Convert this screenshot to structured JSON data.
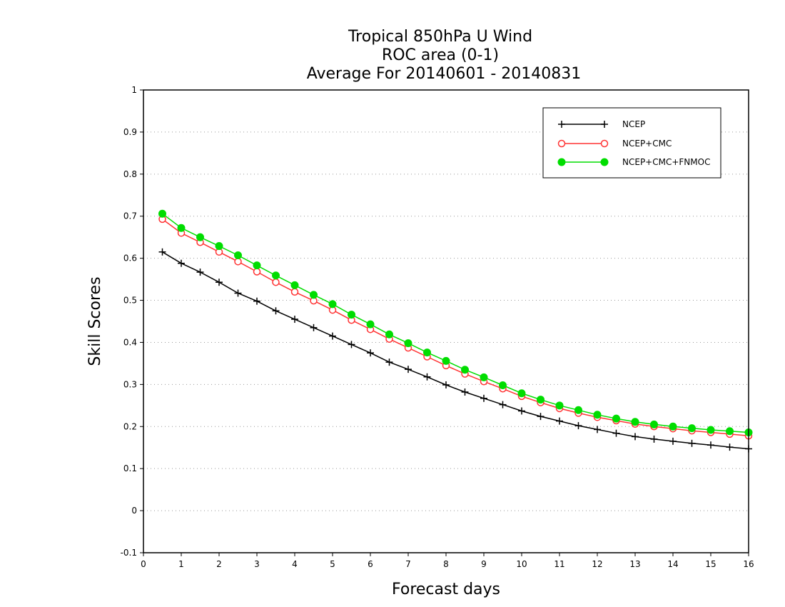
{
  "chart_data": {
    "type": "line",
    "title_lines": [
      "Tropical 850hPa U Wind",
      "ROC area (0-1)",
      "Average For 20140601 - 20140831"
    ],
    "xlabel": "Forecast days",
    "ylabel": "Skill Scores",
    "xlim": [
      0,
      16
    ],
    "ylim": [
      -0.1,
      1
    ],
    "x_ticks": [
      0,
      1,
      2,
      3,
      4,
      5,
      6,
      7,
      8,
      9,
      10,
      11,
      12,
      13,
      14,
      15,
      16
    ],
    "y_ticks": [
      -0.1,
      0,
      0.1,
      0.2,
      0.3,
      0.4,
      0.5,
      0.6,
      0.7,
      0.8,
      0.9,
      1
    ],
    "y_tick_labels": [
      "-0.1",
      "0",
      "0.1",
      "0.2",
      "0.3",
      "0.4",
      "0.5",
      "0.6",
      "0.7",
      "0.8",
      "0.9",
      "1"
    ],
    "grid": true,
    "legend_position": "top-right",
    "x": [
      0.5,
      1,
      1.5,
      2,
      2.5,
      3,
      3.5,
      4,
      4.5,
      5,
      5.5,
      6,
      6.5,
      7,
      7.5,
      8,
      8.5,
      9,
      9.5,
      10,
      10.5,
      11,
      11.5,
      12,
      12.5,
      13,
      13.5,
      14,
      14.5,
      15,
      15.5,
      16
    ],
    "series": [
      {
        "name": "NCEP",
        "color": "#000000",
        "marker": "plus",
        "values": [
          0.615,
          0.588,
          0.567,
          0.543,
          0.517,
          0.498,
          0.475,
          0.455,
          0.435,
          0.415,
          0.395,
          0.375,
          0.353,
          0.336,
          0.318,
          0.299,
          0.282,
          0.267,
          0.252,
          0.237,
          0.224,
          0.213,
          0.202,
          0.193,
          0.184,
          0.176,
          0.17,
          0.165,
          0.16,
          0.156,
          0.151,
          0.147
        ]
      },
      {
        "name": "NCEP+CMC",
        "color": "#ff3333",
        "marker": "open-circle",
        "values": [
          0.693,
          0.66,
          0.638,
          0.615,
          0.592,
          0.568,
          0.543,
          0.52,
          0.499,
          0.477,
          0.453,
          0.431,
          0.408,
          0.387,
          0.366,
          0.345,
          0.325,
          0.307,
          0.29,
          0.272,
          0.257,
          0.243,
          0.232,
          0.222,
          0.214,
          0.206,
          0.2,
          0.195,
          0.19,
          0.186,
          0.182,
          0.178
        ]
      },
      {
        "name": "NCEP+CMC+FNMOC",
        "color": "#00dd00",
        "marker": "filled-circle",
        "values": [
          0.706,
          0.672,
          0.65,
          0.629,
          0.607,
          0.583,
          0.559,
          0.536,
          0.513,
          0.491,
          0.466,
          0.443,
          0.419,
          0.398,
          0.376,
          0.356,
          0.335,
          0.317,
          0.298,
          0.279,
          0.264,
          0.25,
          0.239,
          0.228,
          0.219,
          0.211,
          0.205,
          0.2,
          0.196,
          0.192,
          0.189,
          0.186
        ]
      }
    ]
  }
}
